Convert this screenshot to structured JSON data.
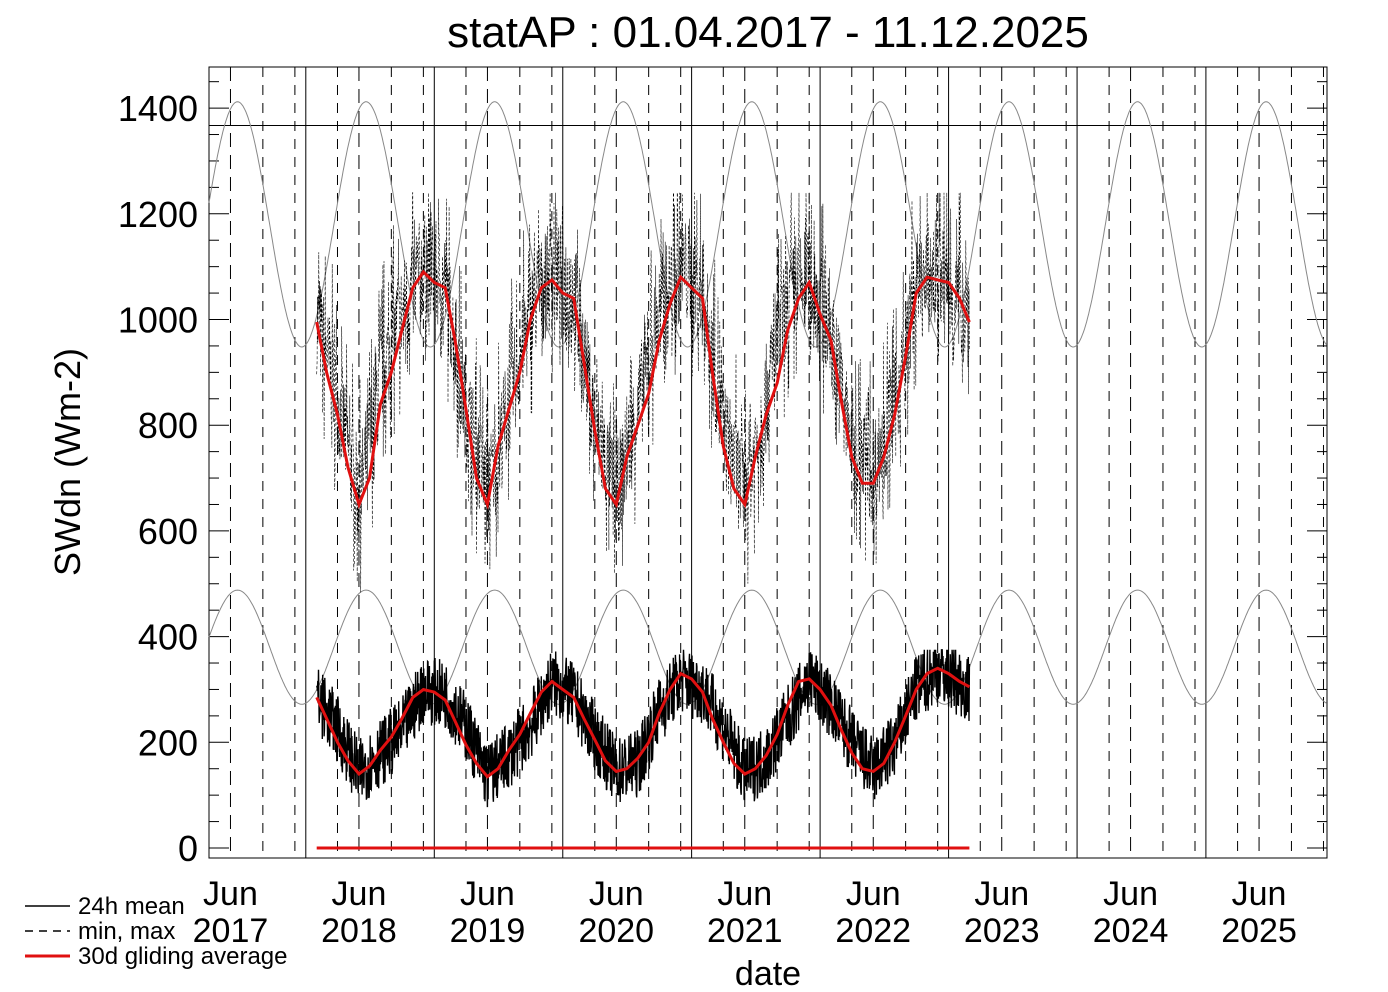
{
  "chart_data": {
    "type": "line",
    "title": "statAP : 01.04.2017 - 11.12.2025",
    "xlabel": "date",
    "ylabel": "SWdn (Wm-2)",
    "ylim": [
      -5,
      1500
    ],
    "xlim": [
      "2017-04-01",
      "2025-12-11"
    ],
    "y_ticks": [
      0,
      200,
      400,
      600,
      800,
      1000,
      1200,
      1400
    ],
    "y_tick_labels": [
      "0",
      "200",
      "400",
      "600",
      "800",
      "1000",
      "1200",
      "1400"
    ],
    "x_ticks": [
      {
        "month": "Jun",
        "year": "2017"
      },
      {
        "month": "Jun",
        "year": "2018"
      },
      {
        "month": "Jun",
        "year": "2019"
      },
      {
        "month": "Jun",
        "year": "2020"
      },
      {
        "month": "Jun",
        "year": "2021"
      },
      {
        "month": "Jun",
        "year": "2022"
      },
      {
        "month": "Jun",
        "year": "2023"
      },
      {
        "month": "Jun",
        "year": "2024"
      },
      {
        "month": "Jun",
        "year": "2025"
      }
    ],
    "solar_constant_line": 1367,
    "legend": {
      "placement": "bottom-left",
      "items": [
        {
          "label": "24h mean",
          "style": "solid",
          "color": "#000000"
        },
        {
          "label": "min, max",
          "style": "dashed",
          "color": "#000000"
        },
        {
          "label": "30d gliding average",
          "style": "solid",
          "color": "#e01010"
        }
      ]
    },
    "data_start": "2018-02-01",
    "data_end": "2023-03-01",
    "series": [
      {
        "name": "24h mean",
        "color": "#000000",
        "dates": [
          "2018-02-01",
          "2018-04-01",
          "2018-06-01",
          "2018-08-01",
          "2018-10-01",
          "2018-12-01",
          "2019-02-01",
          "2019-04-01",
          "2019-06-01",
          "2019-08-01",
          "2019-10-01",
          "2019-12-01",
          "2020-02-01",
          "2020-04-01",
          "2020-06-01",
          "2020-08-01",
          "2020-10-01",
          "2020-12-01",
          "2021-02-01",
          "2021-04-01",
          "2021-06-01",
          "2021-08-01",
          "2021-10-01",
          "2021-12-01",
          "2022-02-01",
          "2022-04-01",
          "2022-06-01",
          "2022-08-01",
          "2022-10-01",
          "2022-12-01",
          "2023-03-01"
        ],
        "values": [
          285,
          225,
          140,
          180,
          220,
          300,
          290,
          230,
          135,
          175,
          230,
          315,
          285,
          210,
          145,
          160,
          260,
          320,
          300,
          230,
          140,
          170,
          245,
          320,
          270,
          200,
          145,
          195,
          300,
          340,
          300
        ]
      },
      {
        "name": "min, max",
        "color": "#000000",
        "dates": [
          "2018-02-01",
          "2018-04-01",
          "2018-06-01",
          "2018-08-01",
          "2018-10-01",
          "2018-12-01",
          "2019-02-01",
          "2019-04-01",
          "2019-06-01",
          "2019-08-01",
          "2019-10-01",
          "2019-12-01",
          "2020-02-01",
          "2020-04-01",
          "2020-06-01",
          "2020-08-01",
          "2020-10-01",
          "2020-12-01",
          "2021-02-01",
          "2021-04-01",
          "2021-06-01",
          "2021-08-01",
          "2021-10-01",
          "2021-12-01",
          "2022-02-01",
          "2022-04-01",
          "2022-06-01",
          "2022-08-01",
          "2022-10-01",
          "2022-12-01",
          "2023-03-01"
        ],
        "values": [
          990,
          840,
          650,
          880,
          1000,
          1090,
          1060,
          820,
          660,
          830,
          1000,
          1080,
          1050,
          790,
          650,
          820,
          1000,
          1090,
          1040,
          780,
          660,
          840,
          1020,
          1070,
          960,
          750,
          700,
          820,
          1050,
          1080,
          1000
        ]
      },
      {
        "name": "30d gliding average",
        "color": "#e01010",
        "dates": [
          "2018-02-01",
          "2018-03-01",
          "2018-04-01",
          "2018-05-01",
          "2018-06-01",
          "2018-07-01",
          "2018-08-01",
          "2018-09-01",
          "2018-10-01",
          "2018-11-01",
          "2018-12-01",
          "2019-01-01",
          "2019-02-01",
          "2019-03-01",
          "2019-04-01",
          "2019-05-01",
          "2019-06-01",
          "2019-07-01",
          "2019-08-01",
          "2019-09-01",
          "2019-10-01",
          "2019-11-01",
          "2019-12-01",
          "2020-01-01",
          "2020-02-01",
          "2020-03-01",
          "2020-04-01",
          "2020-05-01",
          "2020-06-01",
          "2020-07-01",
          "2020-08-01",
          "2020-09-01",
          "2020-10-01",
          "2020-11-01",
          "2020-12-01",
          "2021-01-01",
          "2021-02-01",
          "2021-03-01",
          "2021-04-01",
          "2021-05-01",
          "2021-06-01",
          "2021-07-01",
          "2021-08-01",
          "2021-09-01",
          "2021-10-01",
          "2021-11-01",
          "2021-12-01",
          "2022-01-01",
          "2022-02-01",
          "2022-03-01",
          "2022-04-01",
          "2022-05-01",
          "2022-06-01",
          "2022-07-01",
          "2022-08-01",
          "2022-09-01",
          "2022-10-01",
          "2022-11-01",
          "2022-12-01",
          "2023-01-01",
          "2023-02-01",
          "2023-03-01"
        ],
        "values": [
          285,
          245,
          200,
          165,
          140,
          155,
          185,
          210,
          245,
          285,
          300,
          295,
          280,
          240,
          195,
          160,
          135,
          150,
          185,
          215,
          255,
          295,
          315,
          300,
          285,
          245,
          205,
          165,
          145,
          150,
          170,
          200,
          255,
          300,
          330,
          320,
          295,
          245,
          200,
          160,
          140,
          150,
          175,
          215,
          270,
          315,
          320,
          300,
          270,
          225,
          180,
          150,
          145,
          160,
          200,
          250,
          300,
          330,
          340,
          330,
          315,
          305
        ]
      },
      {
        "name": "30d gliding average (max)",
        "color": "#e01010",
        "dates": [
          "2018-02-01",
          "2018-03-01",
          "2018-04-01",
          "2018-05-01",
          "2018-06-01",
          "2018-07-01",
          "2018-08-01",
          "2018-09-01",
          "2018-10-01",
          "2018-11-01",
          "2018-12-01",
          "2019-01-01",
          "2019-02-01",
          "2019-03-01",
          "2019-04-01",
          "2019-05-01",
          "2019-06-01",
          "2019-07-01",
          "2019-08-01",
          "2019-09-01",
          "2019-10-01",
          "2019-11-01",
          "2019-12-01",
          "2020-01-01",
          "2020-02-01",
          "2020-03-01",
          "2020-04-01",
          "2020-05-01",
          "2020-06-01",
          "2020-07-01",
          "2020-08-01",
          "2020-09-01",
          "2020-10-01",
          "2020-11-01",
          "2020-12-01",
          "2021-01-01",
          "2021-02-01",
          "2021-03-01",
          "2021-04-01",
          "2021-05-01",
          "2021-06-01",
          "2021-07-01",
          "2021-08-01",
          "2021-09-01",
          "2021-10-01",
          "2021-11-01",
          "2021-12-01",
          "2022-01-01",
          "2022-02-01",
          "2022-03-01",
          "2022-04-01",
          "2022-05-01",
          "2022-06-01",
          "2022-07-01",
          "2022-08-01",
          "2022-09-01",
          "2022-10-01",
          "2022-11-01",
          "2022-12-01",
          "2023-01-01",
          "2023-02-01",
          "2023-03-01"
        ],
        "values": [
          995,
          900,
          820,
          720,
          650,
          700,
          840,
          900,
          980,
          1060,
          1090,
          1070,
          1060,
          960,
          830,
          700,
          650,
          760,
          830,
          900,
          1000,
          1060,
          1075,
          1050,
          1040,
          920,
          790,
          680,
          650,
          740,
          800,
          860,
          960,
          1030,
          1080,
          1060,
          1040,
          900,
          760,
          680,
          650,
          740,
          820,
          880,
          980,
          1040,
          1070,
          1010,
          960,
          850,
          740,
          690,
          690,
          740,
          820,
          930,
          1050,
          1080,
          1075,
          1070,
          1040,
          995
        ]
      },
      {
        "name": "30d gliding average (min)",
        "color": "#e01010",
        "dates": [
          "2018-02-01",
          "2023-03-01"
        ],
        "values": [
          0,
          0
        ]
      }
    ],
    "toa_envelope": {
      "max": {
        "min": 948,
        "max": 1412
      },
      "mean": {
        "min": 272,
        "max": 488
      }
    }
  }
}
